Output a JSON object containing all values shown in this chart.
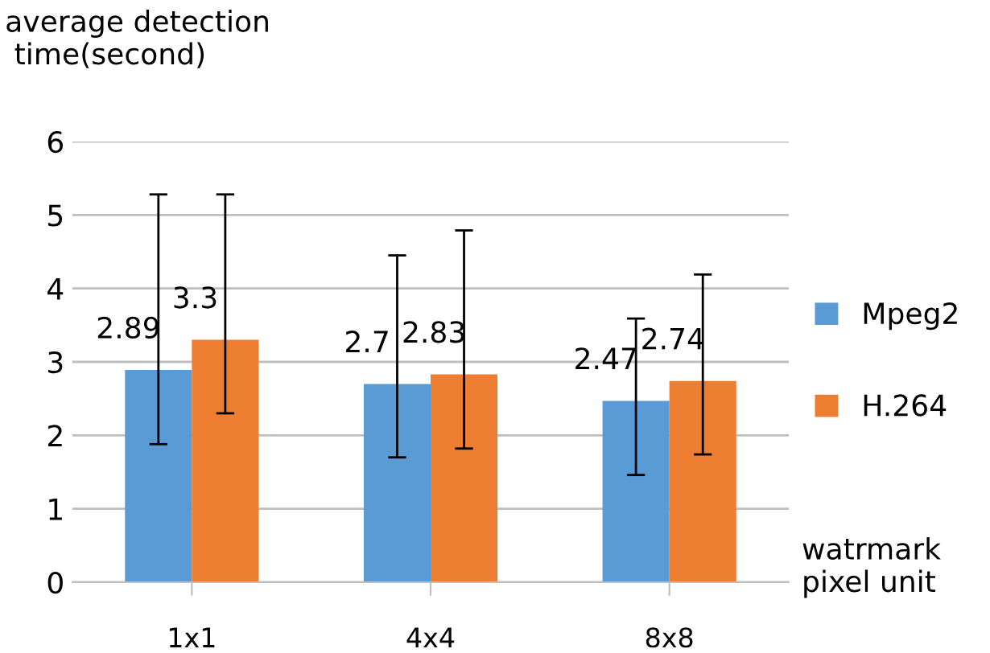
{
  "chart_data": {
    "type": "bar",
    "ylabel": "average detection\n time(second)",
    "xlabel": "watrmark\npixel unit",
    "categories": [
      "1x1",
      "4x4",
      "8x8"
    ],
    "series": [
      {
        "name": "Mpeg2",
        "color": "#5b9bd5",
        "values": [
          2.89,
          2.7,
          2.47
        ],
        "errors": [
          [
            1.88,
            5.28
          ],
          [
            1.7,
            4.45
          ],
          [
            1.46,
            3.59
          ]
        ]
      },
      {
        "name": "H.264",
        "color": "#ed7d31",
        "values": [
          3.3,
          2.83,
          2.74
        ],
        "errors": [
          [
            2.3,
            5.28
          ],
          [
            1.82,
            4.79
          ],
          [
            1.74,
            4.19
          ]
        ]
      }
    ],
    "ylim": [
      0,
      6
    ],
    "yticks": [
      0,
      1,
      2,
      3,
      4,
      5,
      6
    ],
    "grid": "y",
    "legend": "right",
    "data_labels": true
  }
}
